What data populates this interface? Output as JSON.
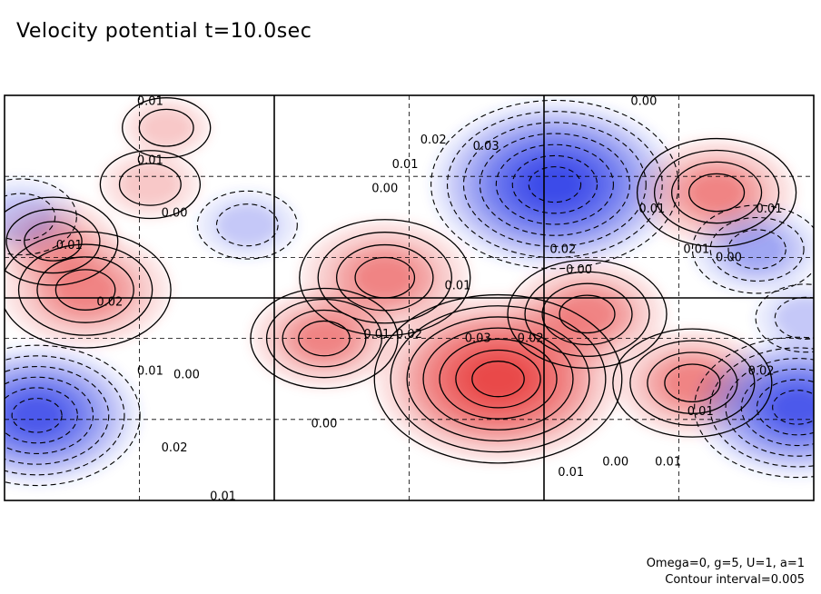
{
  "title": "Velocity potential t=10.0sec",
  "footer": {
    "params": "Omega=0, g=5, U=1, a=1",
    "interval": "Contour interval=0.005"
  },
  "colors": {
    "positive": "#e83a3a",
    "negative": "#2f3fe8",
    "frame": "#000000",
    "grid_dash": "#000000"
  },
  "chart_data": {
    "type": "heatmap",
    "title": "Velocity potential t=10.0sec",
    "xlabel": "",
    "ylabel": "",
    "grid": true,
    "gridlines": {
      "x": 6,
      "y": 5
    },
    "contour_interval": 0.005,
    "extrema": [
      {
        "name": "neg-top-center",
        "x": 0.68,
        "y": 0.78,
        "value": -0.035
      },
      {
        "name": "pos-center-low",
        "x": 0.61,
        "y": 0.3,
        "value": 0.035
      },
      {
        "name": "pos-right-upper",
        "x": 0.88,
        "y": 0.76,
        "value": 0.02
      },
      {
        "name": "pos-right-lower",
        "x": 0.85,
        "y": 0.29,
        "value": 0.02
      },
      {
        "name": "pos-left",
        "x": 0.1,
        "y": 0.52,
        "value": 0.022
      },
      {
        "name": "pos-left-small",
        "x": 0.06,
        "y": 0.64,
        "value": 0.015
      },
      {
        "name": "pos-mid-upper",
        "x": 0.47,
        "y": 0.55,
        "value": 0.022
      },
      {
        "name": "pos-small-spot",
        "x": 0.395,
        "y": 0.4,
        "value": 0.018
      },
      {
        "name": "pos-center-right-small",
        "x": 0.72,
        "y": 0.46,
        "value": 0.02
      },
      {
        "name": "neg-bottom-left",
        "x": 0.04,
        "y": 0.21,
        "value": -0.028
      },
      {
        "name": "neg-bottom-right",
        "x": 0.98,
        "y": 0.23,
        "value": -0.028
      },
      {
        "name": "neg-left-mid",
        "x": 0.02,
        "y": 0.7,
        "value": -0.012
      },
      {
        "name": "neg-upper-left-center",
        "x": 0.3,
        "y": 0.68,
        "value": -0.01
      },
      {
        "name": "neg-right-mid",
        "x": 0.93,
        "y": 0.62,
        "value": -0.015
      },
      {
        "name": "neg-right-center",
        "x": 0.99,
        "y": 0.45,
        "value": -0.01
      },
      {
        "name": "pos-top-left",
        "x": 0.2,
        "y": 0.92,
        "value": 0.008
      },
      {
        "name": "pos-top-left2",
        "x": 0.18,
        "y": 0.78,
        "value": 0.01
      }
    ],
    "contour_labels": [
      {
        "text": "0.01",
        "x": 0.18,
        "y": 0.985
      },
      {
        "text": "0.00",
        "x": 0.79,
        "y": 0.985
      },
      {
        "text": "0.01",
        "x": 0.18,
        "y": 0.84
      },
      {
        "text": "0.02",
        "x": 0.53,
        "y": 0.89
      },
      {
        "text": "0.03",
        "x": 0.595,
        "y": 0.875
      },
      {
        "text": "0.01",
        "x": 0.495,
        "y": 0.83
      },
      {
        "text": "0.00",
        "x": 0.47,
        "y": 0.77
      },
      {
        "text": "0.00",
        "x": 0.21,
        "y": 0.71
      },
      {
        "text": "0.01",
        "x": 0.08,
        "y": 0.63
      },
      {
        "text": "0.01",
        "x": 0.8,
        "y": 0.72
      },
      {
        "text": "0.01",
        "x": 0.945,
        "y": 0.72
      },
      {
        "text": "0.02",
        "x": 0.69,
        "y": 0.62
      },
      {
        "text": "0.00",
        "x": 0.71,
        "y": 0.57
      },
      {
        "text": "0.01",
        "x": 0.855,
        "y": 0.62
      },
      {
        "text": "0.00",
        "x": 0.895,
        "y": 0.6
      },
      {
        "text": "0.01",
        "x": 0.56,
        "y": 0.53
      },
      {
        "text": "0.02",
        "x": 0.13,
        "y": 0.49
      },
      {
        "text": "0.01",
        "x": 0.46,
        "y": 0.41
      },
      {
        "text": "0.02",
        "x": 0.5,
        "y": 0.41
      },
      {
        "text": "0.03",
        "x": 0.585,
        "y": 0.4
      },
      {
        "text": "0.02",
        "x": 0.65,
        "y": 0.4
      },
      {
        "text": "0.01",
        "x": 0.18,
        "y": 0.32
      },
      {
        "text": "0.00",
        "x": 0.225,
        "y": 0.31
      },
      {
        "text": "0.02",
        "x": 0.935,
        "y": 0.32
      },
      {
        "text": "0.01",
        "x": 0.86,
        "y": 0.22
      },
      {
        "text": "0.00",
        "x": 0.395,
        "y": 0.19
      },
      {
        "text": "0.02",
        "x": 0.21,
        "y": 0.13
      },
      {
        "text": "0.01",
        "x": 0.82,
        "y": 0.095
      },
      {
        "text": "0.00",
        "x": 0.755,
        "y": 0.095
      },
      {
        "text": "0.01",
        "x": 0.7,
        "y": 0.07
      },
      {
        "text": "0.01",
        "x": 0.27,
        "y": 0.01
      }
    ]
  }
}
